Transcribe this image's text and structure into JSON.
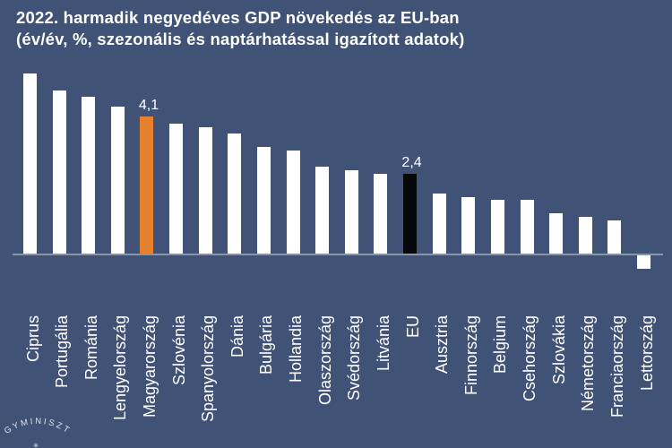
{
  "title": {
    "line1": "2022. harmadik negyedéves GDP növekedés az EU-ban",
    "line2": "(év/év, %, szezonális és naptárhatással igazított adatok)"
  },
  "chart_data": {
    "type": "bar",
    "title": "2022. harmadik negyedéves GDP növekedés az EU-ban (év/év, %, szezonális és naptárhatással igazított adatok)",
    "categories": [
      "Ciprus",
      "Portugália",
      "Románia",
      "Lengyelország",
      "Magyarország",
      "Szlovénia",
      "Spanyolország",
      "Dánia",
      "Bulgária",
      "Hollandia",
      "Olaszország",
      "Svédország",
      "Litvánia",
      "EU",
      "Ausztria",
      "Finnország",
      "Belgium",
      "Csehország",
      "Szlovákia",
      "Németország",
      "Franciaország",
      "Lettország"
    ],
    "values": [
      5.4,
      4.9,
      4.7,
      4.4,
      4.1,
      3.9,
      3.8,
      3.6,
      3.2,
      3.1,
      2.6,
      2.5,
      2.4,
      2.4,
      1.8,
      1.7,
      1.6,
      1.6,
      1.2,
      1.1,
      1.0,
      -0.4
    ],
    "value_labels": [
      {
        "index": 4,
        "text": "4,1"
      },
      {
        "index": 13,
        "text": "2,4"
      }
    ],
    "highlight_colors": {
      "4": "#e6802d",
      "13": "#06070b"
    },
    "default_bar_color": "#ffffff",
    "xlabel": "",
    "ylabel": "",
    "ylim": [
      -0.5,
      5.5
    ],
    "grid": false,
    "legend": false,
    "x_labels_rotated_bottom_to_top": true
  },
  "colors": {
    "background": "#405276",
    "axis_line": "#8994ad",
    "text": "#ffffff",
    "highlight_hungary": "#e6802d",
    "highlight_eu": "#06070b"
  },
  "logo": {
    "arc_text": "GYMINISZT",
    "star": "✳"
  }
}
